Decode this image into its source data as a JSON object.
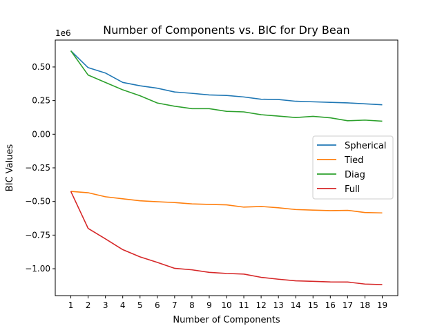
{
  "chart_data": {
    "type": "line",
    "title": "Number of Components vs. BIC for Dry Bean",
    "xlabel": "Number of Components",
    "ylabel": "BIC Values",
    "y_offset_label": "1e6",
    "x": [
      1,
      2,
      3,
      4,
      5,
      6,
      7,
      8,
      9,
      10,
      11,
      12,
      13,
      14,
      15,
      16,
      17,
      18,
      19
    ],
    "xlim": [
      0.1,
      19.9
    ],
    "ylim": [
      -1.2,
      0.7
    ],
    "y_ticks": [
      0.5,
      0.25,
      0.0,
      -0.25,
      -0.5,
      -0.75,
      -1.0
    ],
    "y_tick_labels": [
      "0.50",
      "0.25",
      "0.00",
      "−0.25",
      "−0.50",
      "−0.75",
      "−1.00"
    ],
    "x_tick_labels": [
      "1",
      "2",
      "3",
      "4",
      "5",
      "6",
      "7",
      "8",
      "9",
      "10",
      "11",
      "12",
      "13",
      "14",
      "15",
      "16",
      "17",
      "18",
      "19"
    ],
    "grid": false,
    "legend_position": "center-right",
    "series": [
      {
        "name": "Spherical",
        "color": "#1f77b4",
        "values": [
          0.62,
          0.495,
          0.455,
          0.385,
          0.36,
          0.342,
          0.314,
          0.304,
          0.292,
          0.288,
          0.277,
          0.26,
          0.258,
          0.245,
          0.241,
          0.237,
          0.233,
          0.226,
          0.219
        ]
      },
      {
        "name": "Tied",
        "color": "#ff7f0e",
        "values": [
          -0.425,
          -0.435,
          -0.465,
          -0.48,
          -0.495,
          -0.502,
          -0.508,
          -0.518,
          -0.522,
          -0.525,
          -0.542,
          -0.537,
          -0.547,
          -0.56,
          -0.564,
          -0.568,
          -0.566,
          -0.582,
          -0.585
        ]
      },
      {
        "name": "Diag",
        "color": "#2ca02c",
        "values": [
          0.62,
          0.44,
          0.385,
          0.33,
          0.286,
          0.232,
          0.208,
          0.19,
          0.19,
          0.17,
          0.166,
          0.145,
          0.135,
          0.124,
          0.133,
          0.122,
          0.1,
          0.105,
          0.097
        ]
      },
      {
        "name": "Full",
        "color": "#d62728",
        "values": [
          -0.425,
          -0.7,
          -0.778,
          -0.858,
          -0.912,
          -0.953,
          -0.997,
          -1.008,
          -1.027,
          -1.035,
          -1.04,
          -1.064,
          -1.078,
          -1.09,
          -1.094,
          -1.098,
          -1.099,
          -1.114,
          -1.118
        ]
      }
    ]
  }
}
